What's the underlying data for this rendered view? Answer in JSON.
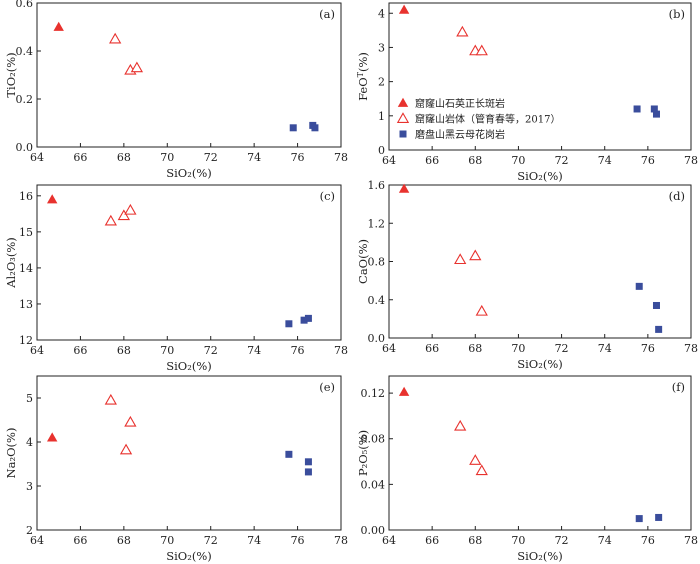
{
  "legend": [
    {
      "marker": "filled-triangle",
      "label": "窟窿山石英正长斑岩",
      "color": "#e8322e"
    },
    {
      "marker": "open-triangle",
      "label": "窟窿山岩体（管育春等，2017）",
      "color": "#e8322e"
    },
    {
      "marker": "filled-square",
      "label": "磨盘山黑云母花岗岩",
      "color": "#3a4d9c"
    }
  ],
  "chart_data": [
    {
      "panel": "(a)",
      "type": "scatter",
      "xlabel": "SiO₂(%)",
      "ylabel": "TiO₂(%)",
      "xlim": [
        64,
        78
      ],
      "ylim": [
        0,
        0.6
      ],
      "xticks": [
        "64",
        "66",
        "68",
        "70",
        "72",
        "74",
        "76",
        "78"
      ],
      "yticks": [
        "0.0",
        "0.2",
        "0.4",
        "0.6"
      ],
      "series": [
        {
          "marker": "filled-triangle",
          "points": [
            [
              65.0,
              0.5
            ]
          ]
        },
        {
          "marker": "open-triangle",
          "points": [
            [
              67.6,
              0.45
            ],
            [
              68.3,
              0.32
            ],
            [
              68.6,
              0.33
            ]
          ]
        },
        {
          "marker": "filled-square",
          "points": [
            [
              75.8,
              0.08
            ],
            [
              76.7,
              0.09
            ],
            [
              76.8,
              0.08
            ]
          ]
        }
      ]
    },
    {
      "panel": "(b)",
      "type": "scatter",
      "xlabel": "SiO₂(%)",
      "ylabel": "FeOT(%)",
      "xlim": [
        64,
        78
      ],
      "ylim": [
        0,
        4.3
      ],
      "xticks": [
        "64",
        "66",
        "68",
        "70",
        "72",
        "74",
        "76",
        "78"
      ],
      "yticks": [
        "0",
        "1",
        "2",
        "3",
        "4"
      ],
      "series": [
        {
          "marker": "filled-triangle",
          "points": [
            [
              64.7,
              4.1
            ]
          ]
        },
        {
          "marker": "open-triangle",
          "points": [
            [
              67.4,
              3.45
            ],
            [
              68.0,
              2.9
            ],
            [
              68.3,
              2.9
            ]
          ]
        },
        {
          "marker": "filled-square",
          "points": [
            [
              75.5,
              1.2
            ],
            [
              76.3,
              1.2
            ],
            [
              76.4,
              1.05
            ]
          ]
        }
      ]
    },
    {
      "panel": "(c)",
      "type": "scatter",
      "xlabel": "SiO₂(%)",
      "ylabel": "Al₂O₃(%)",
      "xlim": [
        64,
        78
      ],
      "ylim": [
        12,
        16.3
      ],
      "xticks": [
        "64",
        "66",
        "68",
        "70",
        "72",
        "74",
        "76",
        "78"
      ],
      "yticks": [
        "12",
        "13",
        "14",
        "15",
        "16"
      ],
      "series": [
        {
          "marker": "filled-triangle",
          "points": [
            [
              64.7,
              15.9
            ]
          ]
        },
        {
          "marker": "open-triangle",
          "points": [
            [
              67.4,
              15.3
            ],
            [
              68.0,
              15.45
            ],
            [
              68.3,
              15.6
            ]
          ]
        },
        {
          "marker": "filled-square",
          "points": [
            [
              75.6,
              12.45
            ],
            [
              76.3,
              12.55
            ],
            [
              76.5,
              12.6
            ]
          ]
        }
      ]
    },
    {
      "panel": "(d)",
      "type": "scatter",
      "xlabel": "SiO₂(%)",
      "ylabel": "CaO(%)",
      "xlim": [
        64,
        78
      ],
      "ylim": [
        0,
        1.6
      ],
      "xticks": [
        "64",
        "66",
        "68",
        "70",
        "72",
        "74",
        "76",
        "78"
      ],
      "yticks": [
        "0.0",
        "0.4",
        "0.8",
        "1.2",
        "1.6"
      ],
      "series": [
        {
          "marker": "filled-triangle",
          "points": [
            [
              64.7,
              1.56
            ]
          ]
        },
        {
          "marker": "open-triangle",
          "points": [
            [
              67.3,
              0.82
            ],
            [
              68.0,
              0.86
            ],
            [
              68.3,
              0.28
            ]
          ]
        },
        {
          "marker": "filled-square",
          "points": [
            [
              75.6,
              0.54
            ],
            [
              76.4,
              0.34
            ],
            [
              76.5,
              0.09
            ]
          ]
        }
      ]
    },
    {
      "panel": "(e)",
      "type": "scatter",
      "xlabel": "SiO₂(%)",
      "ylabel": "Na₂O(%)",
      "xlim": [
        64,
        78
      ],
      "ylim": [
        2,
        5.5
      ],
      "xticks": [
        "64",
        "66",
        "68",
        "70",
        "72",
        "74",
        "76",
        "78"
      ],
      "yticks": [
        "2",
        "3",
        "4",
        "5"
      ],
      "series": [
        {
          "marker": "filled-triangle",
          "points": [
            [
              64.7,
              4.1
            ]
          ]
        },
        {
          "marker": "open-triangle",
          "points": [
            [
              67.4,
              4.95
            ],
            [
              68.1,
              3.82
            ],
            [
              68.3,
              4.45
            ]
          ]
        },
        {
          "marker": "filled-square",
          "points": [
            [
              75.6,
              3.72
            ],
            [
              76.5,
              3.55
            ],
            [
              76.5,
              3.32
            ]
          ]
        }
      ]
    },
    {
      "panel": "(f)",
      "type": "scatter",
      "xlabel": "SiO₂(%)",
      "ylabel": "P₂O₅(%)",
      "xlim": [
        64,
        78
      ],
      "ylim": [
        0,
        0.135
      ],
      "xticks": [
        "64",
        "66",
        "68",
        "70",
        "72",
        "74",
        "76",
        "78"
      ],
      "yticks": [
        "0.00",
        "0.04",
        "0.08",
        "0.12"
      ],
      "series": [
        {
          "marker": "filled-triangle",
          "points": [
            [
              64.7,
              0.121
            ]
          ]
        },
        {
          "marker": "open-triangle",
          "points": [
            [
              67.3,
              0.091
            ],
            [
              68.0,
              0.061
            ],
            [
              68.3,
              0.052
            ]
          ]
        },
        {
          "marker": "filled-square",
          "points": [
            [
              75.6,
              0.01
            ],
            [
              76.5,
              0.011
            ]
          ]
        }
      ]
    }
  ]
}
